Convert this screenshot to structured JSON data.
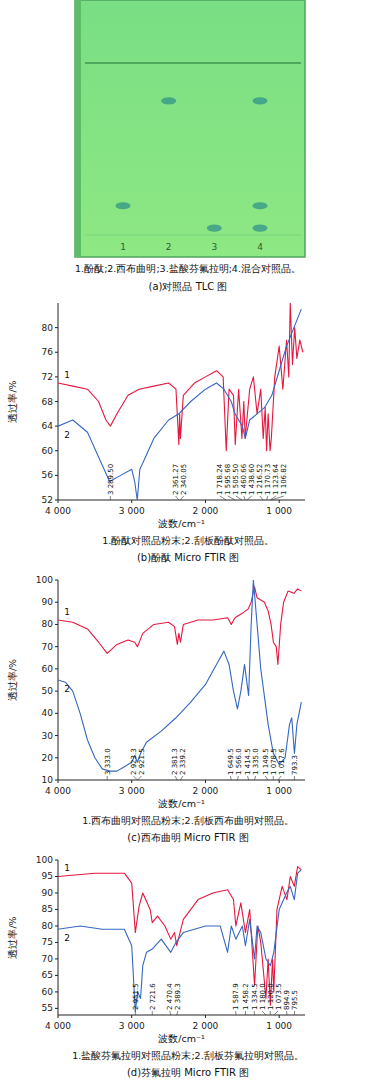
{
  "chart_data": [
    {
      "type": "tlc",
      "title": "(a)对照品 TLC 图",
      "subtitle": "1.酚酞;2.西布曲明;3.盐酸芬氟拉明;4.混合对照品。",
      "categories": [
        "1",
        "2",
        "3",
        "4"
      ],
      "values": [
        [
          0.17
        ],
        [
          0.78
        ],
        [
          0.04
        ],
        [
          0.78,
          0.17,
          0.04
        ]
      ],
      "ylim": [
        0,
        1
      ],
      "tick_labels": false,
      "color": "#3c9c88"
    },
    {
      "type": "line",
      "title": "(b)酚酞 Micro FTIR 图",
      "subtitle": "1.酚酞对照品粉末;2.刮板酚酞对照品。",
      "xlabel": "波数/cm⁻¹",
      "ylabel": "透过率/%",
      "xlim": [
        4000,
        650
      ],
      "xticks": [
        {
          "value": 4000,
          "label": "4 000"
        },
        {
          "value": 3000,
          "label": "3 000"
        },
        {
          "value": 2000,
          "label": "2 000"
        },
        {
          "value": 1000,
          "label": "1 000"
        }
      ],
      "ylim": [
        52,
        84
      ],
      "yticks": [
        52,
        56,
        60,
        64,
        68,
        72,
        76,
        80
      ],
      "series": [
        {
          "name": "1",
          "color": "#e5173f",
          "x": [
            4000,
            3800,
            3600,
            3450,
            3350,
            3289.5,
            3200,
            3050,
            2900,
            2700,
            2500,
            2400,
            2361.27,
            2350,
            2340.05,
            2300,
            2150,
            2000,
            1850,
            1760,
            1718.24,
            1680,
            1620,
            1595.68,
            1550,
            1505.5,
            1480,
            1460.66,
            1438.6,
            1400,
            1350,
            1300,
            1250,
            1216.52,
            1190,
            1170.73,
            1150,
            1123.64,
            1106.82,
            1060,
            1000,
            950,
            900,
            870,
            850,
            820,
            790,
            760,
            720,
            680
          ],
          "values": [
            71,
            70.5,
            70,
            68,
            65,
            64,
            66,
            69,
            70,
            70.5,
            71,
            70,
            61,
            66,
            62,
            69,
            71,
            72,
            73,
            72,
            60,
            70,
            69,
            61,
            70,
            62,
            68,
            62,
            65,
            70,
            72,
            66,
            70,
            62,
            67,
            60,
            66,
            60,
            62,
            72,
            77,
            70,
            78,
            72,
            84,
            74,
            80,
            75,
            78,
            76
          ]
        },
        {
          "name": "2",
          "color": "#3567c2",
          "x": [
            4000,
            3800,
            3600,
            3450,
            3300,
            3150,
            3000,
            2960,
            2925,
            2890,
            2850,
            2700,
            2500,
            2361,
            2200,
            2000,
            1850,
            1750,
            1650,
            1600,
            1500,
            1460,
            1400,
            1300,
            1200,
            1100,
            1000,
            900,
            800,
            700
          ],
          "values": [
            64,
            65,
            63,
            59,
            55,
            56,
            57,
            55,
            52,
            57,
            58,
            62,
            65,
            66,
            68,
            70,
            71,
            70,
            68,
            66,
            64,
            62,
            65,
            66,
            67,
            69,
            73,
            77,
            80,
            83
          ]
        }
      ],
      "annotations": [
        {
          "text": "3 289.50",
          "x": 3289.5
        },
        {
          "text": "2 361.27",
          "x": 2361.27
        },
        {
          "text": "2 340.05",
          "x": 2340.05
        },
        {
          "text": "1 718.24",
          "x": 1718.24
        },
        {
          "text": "1 595.68",
          "x": 1595.68
        },
        {
          "text": "1 505.50",
          "x": 1505.5
        },
        {
          "text": "1 460.66",
          "x": 1460.66
        },
        {
          "text": "1 438.60",
          "x": 1438.6
        },
        {
          "text": "1 216.52",
          "x": 1216.52
        },
        {
          "text": "1 170.73",
          "x": 1170.73
        },
        {
          "text": "1 123.64",
          "x": 1123.64
        },
        {
          "text": "1 106.82",
          "x": 1106.82
        }
      ]
    },
    {
      "type": "line",
      "title": "(c)西布曲明 Micro FTIR 图",
      "subtitle": "1.西布曲明对照品粉末;2.刮板西布曲明对照品。",
      "xlabel": "波数/cm⁻¹",
      "ylabel": "透过率/%",
      "xlim": [
        4000,
        650
      ],
      "xticks": [
        {
          "value": 4000,
          "label": "4 000"
        },
        {
          "value": 3000,
          "label": "3 000"
        },
        {
          "value": 2000,
          "label": "2 000"
        },
        {
          "value": 1000,
          "label": "1 000"
        }
      ],
      "ylim": [
        10,
        100
      ],
      "yticks": [
        10,
        20,
        30,
        40,
        50,
        60,
        70,
        80,
        90,
        100
      ],
      "series": [
        {
          "name": "1",
          "color": "#e5173f",
          "x": [
            4000,
            3800,
            3600,
            3450,
            3333,
            3200,
            3050,
            2960,
            2921.5,
            2850,
            2700,
            2500,
            2420,
            2381.3,
            2360,
            2339.2,
            2300,
            2100,
            1900,
            1700,
            1649.5,
            1600,
            1500,
            1420,
            1380,
            1335,
            1300,
            1200,
            1149.5,
            1110,
            1078.5,
            1040,
            1017.6,
            980,
            940,
            880,
            800,
            750,
            700
          ],
          "values": [
            82,
            81,
            78,
            72,
            67,
            71,
            73,
            72,
            70,
            76,
            80,
            81,
            79,
            71,
            76,
            72,
            80,
            82,
            82,
            83,
            80,
            83,
            85,
            87,
            90,
            97,
            92,
            90,
            86,
            80,
            72,
            70,
            62,
            80,
            90,
            95,
            94,
            96,
            95
          ]
        },
        {
          "name": "2",
          "color": "#3567c2",
          "x": [
            4000,
            3900,
            3800,
            3700,
            3600,
            3500,
            3400,
            3300,
            3200,
            3100,
            3000,
            2960,
            2923.3,
            2880,
            2800,
            2600,
            2400,
            2200,
            2000,
            1850,
            1750,
            1680,
            1620,
            1566,
            1520,
            1470,
            1414.5,
            1380,
            1350,
            1320,
            1250,
            1150,
            1080,
            1000,
            920,
            860,
            830,
            793.3,
            760,
            700
          ],
          "values": [
            55,
            54,
            50,
            40,
            28,
            20,
            15,
            14,
            14,
            16,
            18,
            21,
            18,
            22,
            27,
            32,
            38,
            45,
            53,
            62,
            68,
            62,
            50,
            42,
            50,
            62,
            48,
            80,
            100,
            88,
            60,
            35,
            22,
            17,
            20,
            35,
            38,
            22,
            35,
            45
          ]
        }
      ],
      "annotations": [
        {
          "text": "3 333.0",
          "x": 3333
        },
        {
          "text": "2 921.5",
          "x": 2921.5
        },
        {
          "text": "2 923.3",
          "x": 2923.3
        },
        {
          "text": "2 381.3",
          "x": 2381.3
        },
        {
          "text": "2 339.2",
          "x": 2339.2
        },
        {
          "text": "1 649.5",
          "x": 1649.5
        },
        {
          "text": "1 566.0",
          "x": 1566
        },
        {
          "text": "1 414.5",
          "x": 1414.5
        },
        {
          "text": "1 335.0",
          "x": 1335
        },
        {
          "text": "1 149.5",
          "x": 1149.5
        },
        {
          "text": "1 078.5",
          "x": 1078.5
        },
        {
          "text": "1 017.6",
          "x": 1017.6
        },
        {
          "text": "793.3",
          "x": 793.3
        }
      ]
    },
    {
      "type": "line",
      "title": "(d)芬氟拉明 Micro FTIR 图",
      "subtitle": "1.盐酸芬氟拉明对照品粉末;2.刮板芬氟拉明对照品。",
      "xlabel": "波数/cm⁻¹",
      "ylabel": "透过率/%",
      "xlim": [
        4000,
        650
      ],
      "xticks": [
        {
          "value": 4000,
          "label": "4 000"
        },
        {
          "value": 3000,
          "label": "3 000"
        },
        {
          "value": 2000,
          "label": "2 000"
        },
        {
          "value": 1000,
          "label": "1 000"
        }
      ],
      "ylim": [
        53,
        100
      ],
      "yticks": [
        55,
        60,
        65,
        70,
        75,
        80,
        85,
        90,
        95,
        100
      ],
      "series": [
        {
          "name": "1",
          "color": "#e5173f",
          "x": [
            4000,
            3500,
            3100,
            3000,
            2951.5,
            2900,
            2850,
            2750,
            2721.6,
            2650,
            2550,
            2470.4,
            2420,
            2389.3,
            2300,
            2100,
            1900,
            1700,
            1620,
            1587.9,
            1520,
            1458.2,
            1400,
            1334.5,
            1290,
            1250,
            1180,
            1150,
            1120,
            1090,
            1073.5,
            1030,
            960,
            894.9,
            850,
            795.5,
            750,
            700
          ],
          "values": [
            95,
            96,
            96,
            93,
            78,
            86,
            90,
            85,
            81,
            83,
            80,
            76,
            78,
            74,
            82,
            88,
            90,
            91,
            88,
            80,
            87,
            78,
            85,
            62,
            80,
            75,
            58,
            70,
            56,
            70,
            60,
            85,
            92,
            88,
            95,
            92,
            98,
            97
          ]
        },
        {
          "name": "2",
          "color": "#3567c2",
          "x": [
            4000,
            3700,
            3400,
            3100,
            3000,
            2951.5,
            2920,
            2880,
            2850,
            2800,
            2721.6,
            2600,
            2470.4,
            2400,
            2300,
            2000,
            1800,
            1700,
            1650,
            1587.9,
            1500,
            1458.2,
            1400,
            1334.5,
            1300,
            1250,
            1180,
            1120,
            1073.5,
            1000,
            900,
            850,
            795.5,
            750,
            700
          ],
          "values": [
            79,
            80,
            79,
            79,
            74,
            54,
            60,
            58,
            68,
            72,
            73,
            76,
            72,
            75,
            78,
            80,
            80,
            72,
            80,
            76,
            80,
            74,
            82,
            70,
            80,
            78,
            70,
            68,
            72,
            85,
            90,
            92,
            88,
            96,
            97
          ]
        }
      ],
      "annotations": [
        {
          "text": "2 951.5",
          "x": 2951.5
        },
        {
          "text": "2 721.6",
          "x": 2721.6
        },
        {
          "text": "2 470.4",
          "x": 2470.4
        },
        {
          "text": "2 389.3",
          "x": 2389.3
        },
        {
          "text": "1 587.9",
          "x": 1587.9
        },
        {
          "text": "1 458.2",
          "x": 1458.2
        },
        {
          "text": "1 334.5",
          "x": 1334.5
        },
        {
          "text": "1 180.0",
          "x": 1180
        },
        {
          "text": "1 120.0",
          "x": 1120
        },
        {
          "text": "1 073.5",
          "x": 1073.5
        },
        {
          "text": "894.9",
          "x": 894.9
        },
        {
          "text": "795.5",
          "x": 795.5
        }
      ]
    }
  ]
}
